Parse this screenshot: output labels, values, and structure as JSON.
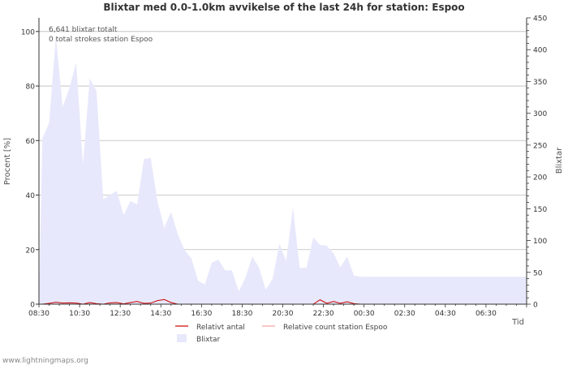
{
  "chart_data": {
    "type": "area",
    "title": "Blixtar med 0.0-1.0km avvikelse of the last 24h for station: Espoo",
    "ylabel_left": "Procent   [%]",
    "ylabel_right": "Blixtar",
    "xlabel": "Tid",
    "ylim_left": [
      0,
      105
    ],
    "ylim_right": [
      0,
      450
    ],
    "yticks_left": [
      0,
      20,
      40,
      60,
      80,
      100
    ],
    "yticks_right": [
      0,
      50,
      100,
      150,
      200,
      250,
      300,
      350,
      400,
      450
    ],
    "x_tick_labels": [
      "08:30",
      "10:30",
      "12:30",
      "14:30",
      "16:30",
      "18:30",
      "20:30",
      "22:30",
      "00:30",
      "02:30",
      "04:30",
      "06:30"
    ],
    "x_start_hours": 8.5,
    "bin_minutes": 20,
    "annotations": [
      "6,641 blixtar totalt",
      "0 total strokes station Espoo"
    ],
    "legend": [
      {
        "label": "Relativt antal",
        "color": "#cc0000",
        "kind": "line"
      },
      {
        "label": "Relative count station Espoo",
        "color": "#f4a0a0",
        "kind": "line"
      },
      {
        "label": "Blixtar",
        "color": "#e8e8fc",
        "kind": "area"
      }
    ],
    "series": [
      {
        "name": "Blixtar",
        "axis": "right",
        "color": "#e8e8fc",
        "values": [
          260,
          285,
          420,
          310,
          340,
          380,
          220,
          355,
          335,
          165,
          172,
          178,
          140,
          162,
          157,
          228,
          230,
          162,
          120,
          145,
          110,
          85,
          72,
          37,
          31,
          65,
          70,
          53,
          53,
          20,
          42,
          75,
          57,
          23,
          40,
          95,
          68,
          152,
          57,
          57,
          105,
          93,
          92,
          80,
          58,
          75,
          45,
          43
        ]
      },
      {
        "name": "Relativt antal",
        "axis": "left",
        "color": "#cc0000",
        "values": [
          0,
          0.3,
          0.7,
          0.4,
          0.5,
          0.4,
          0,
          0.6,
          0.2,
          0,
          0.5,
          0.6,
          0.1,
          0.6,
          1.0,
          0.3,
          0.4,
          1.3,
          1.7,
          0.6,
          0,
          0,
          0,
          0,
          0,
          0,
          0,
          0,
          0,
          0,
          0,
          0,
          0,
          0,
          0,
          0,
          0,
          0,
          0,
          0,
          0,
          1.6,
          0.3,
          1.0,
          0.3,
          0.9,
          0.2,
          0
        ]
      },
      {
        "name": "Relative count station Espoo",
        "axis": "left",
        "color": "#f4a0a0",
        "values": []
      }
    ]
  },
  "footer": "www.lightningmaps.org"
}
